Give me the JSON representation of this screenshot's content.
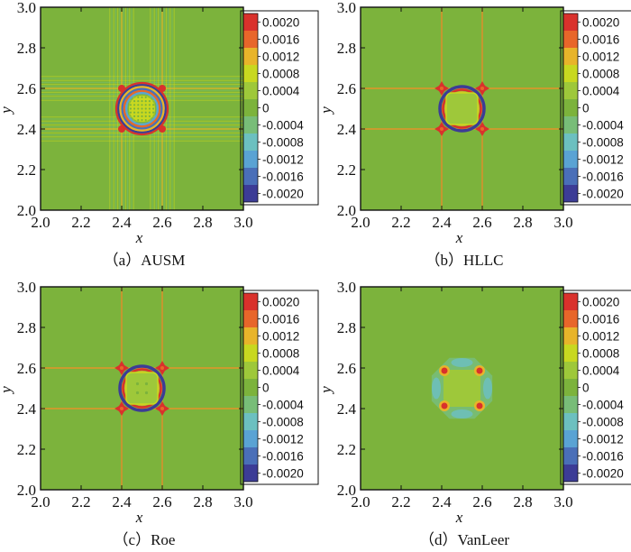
{
  "figure": {
    "title": ""
  },
  "colors": {
    "background": "#7cb33c",
    "levels": [
      "#3c3c96",
      "#4a6fb8",
      "#5aa3d4",
      "#6cc0c0",
      "#78bd78",
      "#7cb33c",
      "#9ec83a",
      "#c8d820",
      "#e8b42a",
      "#e8662a",
      "#d9312c"
    ],
    "axis": "#111111"
  },
  "colorbar": {
    "labels": [
      "0.0020",
      "0.0016",
      "0.0012",
      "0.0008",
      "0.0004",
      "0",
      "-0.0004",
      "-0.0008",
      "-0.0012",
      "-0.0016",
      "-0.0020"
    ],
    "values": [
      0.002,
      0.0016,
      0.0012,
      0.0008,
      0.0004,
      0,
      -0.0004,
      -0.0008,
      -0.0012,
      -0.0016,
      -0.002
    ]
  },
  "chart_data": [
    {
      "type": "heatmap",
      "caption": "（a）AUSM",
      "scheme": "AUSM",
      "xlabel": "x",
      "ylabel": "y",
      "xlim": [
        2.0,
        3.0
      ],
      "ylim": [
        2.0,
        3.0
      ],
      "xticks": [
        "2.0",
        "2.2",
        "2.4",
        "2.6",
        "2.8",
        "3.0"
      ],
      "yticks": [
        "2.0",
        "2.2",
        "2.4",
        "2.6",
        "2.8",
        "3.0"
      ],
      "vortex_center": [
        2.5,
        2.5
      ],
      "ring_radius": 0.1,
      "range": [
        -0.002,
        0.002
      ]
    },
    {
      "type": "heatmap",
      "caption": "（b）HLLC",
      "scheme": "HLLC",
      "xlabel": "x",
      "ylabel": "y",
      "xlim": [
        2.0,
        3.0
      ],
      "ylim": [
        2.0,
        3.0
      ],
      "xticks": [
        "2.0",
        "2.2",
        "2.4",
        "2.6",
        "2.8",
        "3.0"
      ],
      "yticks": [
        "2.0",
        "2.2",
        "2.4",
        "2.6",
        "2.8",
        "3.0"
      ],
      "vortex_center": [
        2.5,
        2.5
      ],
      "ring_radius": 0.1,
      "range": [
        -0.002,
        0.002
      ]
    },
    {
      "type": "heatmap",
      "caption": "（c）Roe",
      "scheme": "Roe",
      "xlabel": "x",
      "ylabel": "y",
      "xlim": [
        2.0,
        3.0
      ],
      "ylim": [
        2.0,
        3.0
      ],
      "xticks": [
        "2.0",
        "2.2",
        "2.4",
        "2.6",
        "2.8",
        "3.0"
      ],
      "yticks": [
        "2.0",
        "2.2",
        "2.4",
        "2.6",
        "2.8",
        "3.0"
      ],
      "vortex_center": [
        2.5,
        2.5
      ],
      "ring_radius": 0.1,
      "range": [
        -0.002,
        0.002
      ]
    },
    {
      "type": "heatmap",
      "caption": "（d）VanLeer",
      "scheme": "VanLeer",
      "xlabel": "x",
      "ylabel": "y",
      "xlim": [
        2.0,
        3.0
      ],
      "ylim": [
        2.0,
        3.0
      ],
      "xticks": [
        "2.0",
        "2.2",
        "2.4",
        "2.6",
        "2.8",
        "3.0"
      ],
      "yticks": [
        "2.0",
        "2.2",
        "2.4",
        "2.6",
        "2.8",
        "3.0"
      ],
      "vortex_center": [
        2.5,
        2.5
      ],
      "ring_radius": 0.1,
      "range": [
        -0.002,
        0.002
      ]
    }
  ]
}
